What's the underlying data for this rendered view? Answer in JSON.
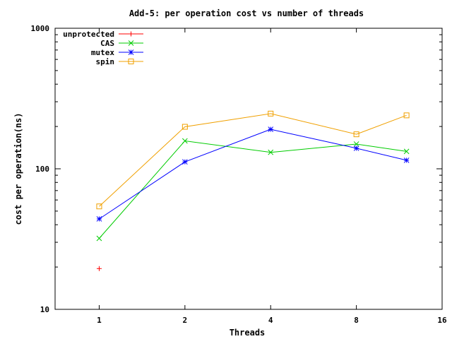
{
  "chart_data": {
    "type": "line",
    "title": "Add-5: per operation cost vs number of threads",
    "xlabel": "Threads",
    "ylabel": "cost per operation(ns)",
    "x_scale": "log2",
    "y_scale": "log10",
    "xlim": [
      0.7,
      16
    ],
    "ylim": [
      10,
      1000
    ],
    "x_ticks": [
      1,
      2,
      4,
      8,
      16
    ],
    "y_ticks": [
      10,
      100,
      1000
    ],
    "grid": false,
    "legend_position": "top-left",
    "series": [
      {
        "name": "unprotected",
        "color": "#ff0000",
        "marker": "plus",
        "x": [
          1
        ],
        "y": [
          19.5
        ]
      },
      {
        "name": "CAS",
        "color": "#00cc00",
        "marker": "cross",
        "x": [
          1,
          2,
          4,
          8,
          12
        ],
        "y": [
          32,
          158,
          131,
          150,
          133
        ]
      },
      {
        "name": "mutex",
        "color": "#0000ff",
        "marker": "star",
        "x": [
          1,
          2,
          4,
          8,
          12
        ],
        "y": [
          44,
          112,
          191,
          140,
          115
        ]
      },
      {
        "name": "spin",
        "color": "#f0a000",
        "marker": "square",
        "x": [
          1,
          2,
          4,
          8,
          12
        ],
        "y": [
          54,
          199,
          247,
          176,
          240
        ]
      }
    ]
  }
}
